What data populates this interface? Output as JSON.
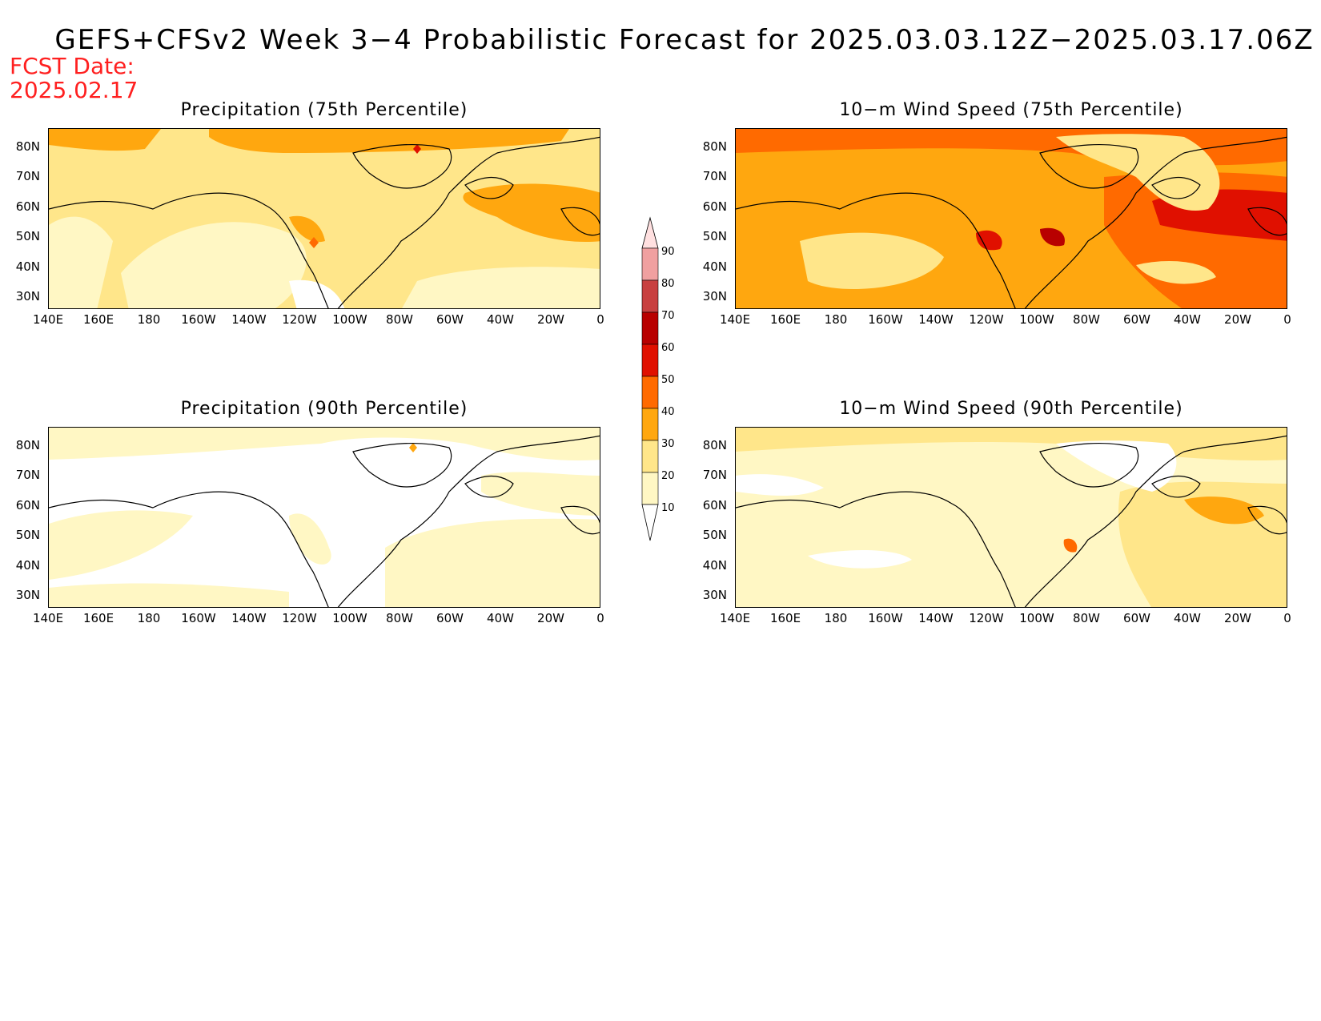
{
  "title": "GEFS+CFSv2 Week 3−4 Probabilistic Forecast for 2025.03.03.12Z−2025.03.17.06Z",
  "fcst_label": "FCST Date:",
  "fcst_date": "2025.02.17",
  "colors": {
    "c10": "#fff7c4",
    "c20": "#ffe68a",
    "c30": "#ffa70f",
    "c40": "#ff6a00",
    "c50": "#e01000",
    "c60": "#b80000",
    "c70": "#c84040",
    "c80": "#f0a0a0",
    "c90": "#ffe0e0"
  },
  "colorbar": {
    "levels": [
      "90",
      "80",
      "70",
      "60",
      "50",
      "40",
      "30",
      "20",
      "10"
    ]
  },
  "axes": {
    "lat_labels": [
      "80N",
      "70N",
      "60N",
      "50N",
      "40N",
      "30N"
    ],
    "lon_labels": [
      "140E",
      "160E",
      "180",
      "160W",
      "140W",
      "120W",
      "100W",
      "80W",
      "60W",
      "40W",
      "20W",
      "0"
    ]
  },
  "panels": [
    {
      "id": "precip75",
      "title": "Precipitation (75th Percentile)",
      "base": "c20"
    },
    {
      "id": "wind75",
      "title": "10−m Wind Speed (75th Percentile)",
      "base": "c40"
    },
    {
      "id": "precip90",
      "title": "Precipitation (90th Percentile)",
      "base": "white"
    },
    {
      "id": "wind90",
      "title": "10−m Wind Speed (90th Percentile)",
      "base": "c10"
    }
  ]
}
